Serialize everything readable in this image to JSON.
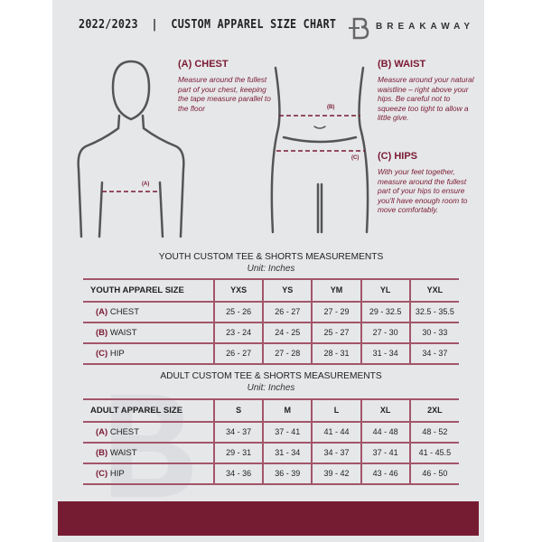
{
  "header": {
    "title": "2022/2023  |  CUSTOM APPAREL SIZE CHART",
    "brand": "BREAKAWAY",
    "logo_letter": "B"
  },
  "guide": {
    "chest": {
      "title": "(A) CHEST",
      "text": "Measure around the fullest part of your chest, keeping the tape measure parallel to the floor",
      "mark": "(A)"
    },
    "waist": {
      "title": "(B) WAIST",
      "text": "Measure around your natural waistline – right above your hips. Be careful not to squeeze too tight to allow a little give.",
      "mark": "(B)"
    },
    "hips": {
      "title": "(C) HIPS",
      "text": "With your feet together, measure around the fullest part of your hips to ensure you'll have enough room to move comfortably.",
      "mark": "(C)"
    }
  },
  "youth": {
    "title": "YOUTH CUSTOM TEE & SHORTS MEASUREMENTS",
    "unit": "Unit: Inches",
    "header": [
      "YOUTH APPAREL SIZE",
      "YXS",
      "YS",
      "YM",
      "YL",
      "YXL"
    ],
    "rows": [
      {
        "code": "(A)",
        "label": "CHEST",
        "values": [
          "25 - 26",
          "26 - 27",
          "27 - 29",
          "29 - 32.5",
          "32.5 - 35.5"
        ]
      },
      {
        "code": "(B)",
        "label": "WAIST",
        "values": [
          "23 - 24",
          "24 - 25",
          "25 - 27",
          "27 - 30",
          "30 - 33"
        ]
      },
      {
        "code": "(C)",
        "label": "HIP",
        "values": [
          "26 - 27",
          "27 - 28",
          "28 - 31",
          "31 - 34",
          "34 - 37"
        ]
      }
    ]
  },
  "adult": {
    "title": "ADULT CUSTOM TEE & SHORTS MEASUREMENTS",
    "unit": "Unit: Inches",
    "header": [
      "ADULT APPAREL SIZE",
      "S",
      "M",
      "L",
      "XL",
      "2XL"
    ],
    "rows": [
      {
        "code": "(A)",
        "label": "CHEST",
        "values": [
          "34 - 37",
          "37 - 41",
          "41 - 44",
          "44 - 48",
          "48 - 52"
        ]
      },
      {
        "code": "(B)",
        "label": "WAIST",
        "values": [
          "29 - 31",
          "31 - 34",
          "34 - 37",
          "37 - 41",
          "41 - 45.5"
        ]
      },
      {
        "code": "(C)",
        "label": "HIP",
        "values": [
          "34 - 36",
          "36 - 39",
          "39 - 42",
          "43 - 46",
          "46 - 50"
        ]
      }
    ]
  },
  "colors": {
    "accent": "#751c33",
    "background": "#e6e7e9"
  }
}
